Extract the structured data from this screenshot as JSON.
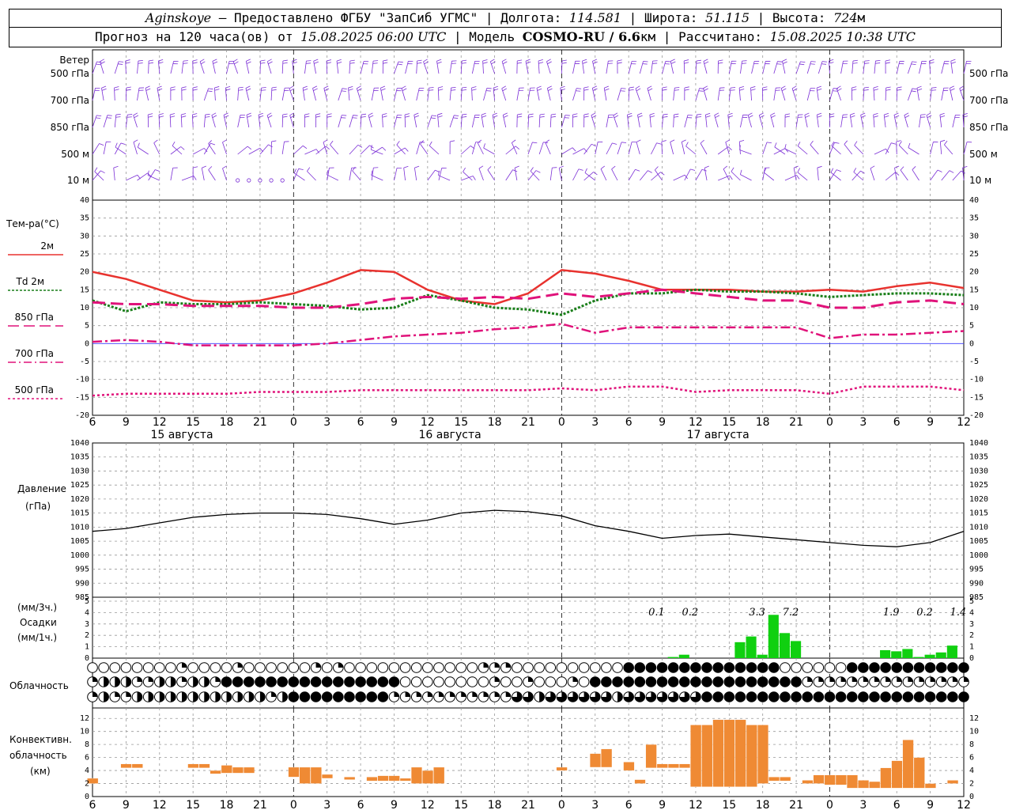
{
  "header": {
    "station": "Aginskoye",
    "dash": " – ",
    "provider": "Предоставлено ФГБУ \"ЗапСиб УГМС\"",
    "lon_label": "Долгота:",
    "lon": "114.581",
    "lat_label": "Широта:",
    "lat": "51.115",
    "alt_label": "Высота:",
    "alt": "724",
    "alt_unit": "м",
    "forecast_label": "Прогноз на 120 часа(ов) от",
    "forecast_start": "15.08.2025 06:00 UTC",
    "model_label": "Модель",
    "model": "COSMO-RU / 6.6",
    "model_unit": "км",
    "calc_label": "Рассчитано:",
    "calc_time": "15.08.2025 10:38 UTC",
    "sep": " | "
  },
  "hour_ticks": [
    "6",
    "9",
    "12",
    "15",
    "18",
    "21",
    "0",
    "3",
    "6",
    "9",
    "12",
    "15",
    "18",
    "21",
    "0",
    "3",
    "6",
    "9",
    "12",
    "15",
    "18",
    "21",
    "0",
    "3",
    "6",
    "9",
    "12"
  ],
  "dates": [
    {
      "label": "15 августа",
      "hour": 8
    },
    {
      "label": "16 августа",
      "hour": 32
    },
    {
      "label": "17 августа",
      "hour": 56
    }
  ],
  "wind": {
    "title": "Ветер",
    "levels": [
      "500 гПа",
      "700 гПа",
      "850 гПа",
      "500 м",
      "10 м"
    ],
    "colors": {
      "barb": "#7b2fd6"
    }
  },
  "temp_panel": {
    "title": "Тем-ра(°С)",
    "legend": [
      {
        "label": "2м",
        "color": "#e8322e",
        "dash": ""
      },
      {
        "label": "Td 2м",
        "color": "#1a7f1a",
        "dash": "2,2"
      },
      {
        "label": "850 гПа",
        "color": "#e0127a",
        "dash": "14,6"
      },
      {
        "label": "700 гПа",
        "color": "#e0127a",
        "dash": "10,4,2,4"
      },
      {
        "label": "500 гПа",
        "color": "#e0127a",
        "dash": "3,3"
      }
    ]
  },
  "pressure_panel": {
    "title1": "Давление",
    "title2": "(гПа)"
  },
  "precip_panel": {
    "title1": "(мм/3ч.)",
    "title2": "Осадки",
    "title3": "(мм/1ч.)",
    "bar_color": "#10d010"
  },
  "cloud_panel": {
    "title": "Облачность"
  },
  "conv_panel": {
    "title1": "Конвективн.",
    "title2": "облачность",
    "title3": "(км)",
    "bar_color": "#ef8a34"
  },
  "chart_data": [
    {
      "type": "line",
      "title": "Тем-ра(°С)",
      "ylim": [
        -20,
        40
      ],
      "x_hours_from_start": [
        0,
        3,
        6,
        9,
        12,
        15,
        18,
        21,
        24,
        27,
        30,
        33,
        36,
        39,
        42,
        45,
        48,
        51,
        54,
        57,
        60,
        63,
        66,
        69,
        72,
        75,
        78
      ],
      "series": [
        {
          "name": "2м",
          "values": [
            20,
            18,
            15,
            12,
            11.5,
            12,
            14,
            17,
            20.5,
            20,
            15,
            12,
            11,
            14,
            20.5,
            19.5,
            17.5,
            15,
            15,
            15,
            14.5,
            14.5,
            15,
            14.5,
            16,
            17,
            15.5
          ]
        },
        {
          "name": "Td 2м",
          "values": [
            12,
            9,
            11.5,
            11,
            11,
            11.5,
            11,
            10.5,
            9.5,
            10,
            13.5,
            12,
            10,
            9.5,
            8,
            12,
            14,
            14,
            15,
            14.5,
            14.5,
            14,
            13,
            13.5,
            14,
            14,
            13.5
          ]
        },
        {
          "name": "850 гПа",
          "values": [
            11.5,
            11,
            11,
            10.5,
            10.5,
            10.5,
            10,
            10,
            11,
            12.5,
            13,
            12.5,
            13,
            12.5,
            14,
            13,
            14,
            15,
            14,
            13,
            12,
            12,
            10,
            10,
            11.5,
            12,
            11
          ]
        },
        {
          "name": "700 гПа",
          "values": [
            0.5,
            1,
            0.5,
            -0.5,
            -0.5,
            -0.5,
            -0.5,
            0,
            1,
            2,
            2.5,
            3,
            4,
            4.5,
            5.5,
            3,
            4.5,
            4.5,
            4.5,
            4.5,
            4.5,
            4.5,
            1.5,
            2.5,
            2.5,
            3,
            3.5
          ]
        },
        {
          "name": "500 гПа",
          "values": [
            -14.5,
            -14,
            -14,
            -14,
            -14,
            -13.5,
            -13.5,
            -13.5,
            -13,
            -13,
            -13,
            -13,
            -13,
            -13,
            -12.5,
            -13,
            -12,
            -12,
            -13.5,
            -13,
            -13,
            -13,
            -14,
            -12,
            -12,
            -12,
            -13
          ]
        }
      ]
    },
    {
      "type": "line",
      "title": "Давление (гПа)",
      "ylim": [
        985,
        1040
      ],
      "x_hours_from_start": [
        0,
        3,
        6,
        9,
        12,
        15,
        18,
        21,
        24,
        27,
        30,
        33,
        36,
        39,
        42,
        45,
        48,
        51,
        54,
        57,
        60,
        63,
        66,
        69,
        72,
        75,
        78
      ],
      "series": [
        {
          "name": "Давление",
          "values": [
            1008.5,
            1009.5,
            1011.5,
            1013.5,
            1014.5,
            1015,
            1015,
            1014.5,
            1013,
            1011,
            1012.5,
            1015,
            1016,
            1015.5,
            1014,
            1010.5,
            1008.5,
            1006,
            1007,
            1007.5,
            1006.5,
            1005.5,
            1004.5,
            1003.5,
            1003,
            1004.5,
            1008.5
          ]
        }
      ]
    },
    {
      "type": "bar",
      "title": "Осадки",
      "ylim": [
        0,
        5
      ],
      "totals_3h": [
        {
          "hour": 50.5,
          "label": "0.1"
        },
        {
          "hour": 53.5,
          "label": "0.2"
        },
        {
          "hour": 59.5,
          "label": "3.3"
        },
        {
          "hour": 62.5,
          "label": "7.2"
        },
        {
          "hour": 71.5,
          "label": "1.9"
        },
        {
          "hour": 74.5,
          "label": "0.2"
        },
        {
          "hour": 77.5,
          "label": "1.4"
        }
      ],
      "hourly": [
        {
          "hour": 52,
          "mm": 0.1
        },
        {
          "hour": 53,
          "mm": 0.3
        },
        {
          "hour": 58,
          "mm": 1.4
        },
        {
          "hour": 59,
          "mm": 1.9
        },
        {
          "hour": 60,
          "mm": 0.3
        },
        {
          "hour": 61,
          "mm": 3.8
        },
        {
          "hour": 62,
          "mm": 2.2
        },
        {
          "hour": 63,
          "mm": 1.5
        },
        {
          "hour": 71,
          "mm": 0.7
        },
        {
          "hour": 72,
          "mm": 0.6
        },
        {
          "hour": 73,
          "mm": 0.8
        },
        {
          "hour": 74,
          "mm": 0.1
        },
        {
          "hour": 75,
          "mm": 0.3
        },
        {
          "hour": 76,
          "mm": 0.5
        },
        {
          "hour": 77,
          "mm": 1.1
        }
      ]
    },
    {
      "type": "bar",
      "title": "Конвективн. облачность (км)",
      "ylim": [
        0,
        13
      ],
      "segments": [
        {
          "hour": 0,
          "base": 2,
          "top": 2.8
        },
        {
          "hour": 3,
          "base": 4.4,
          "top": 5
        },
        {
          "hour": 4,
          "base": 4.4,
          "top": 5
        },
        {
          "hour": 9,
          "base": 4.4,
          "top": 5
        },
        {
          "hour": 10,
          "base": 4.4,
          "top": 5
        },
        {
          "hour": 11,
          "base": 3.5,
          "top": 4
        },
        {
          "hour": 12,
          "base": 3.6,
          "top": 4.8
        },
        {
          "hour": 13,
          "base": 3.6,
          "top": 4.5
        },
        {
          "hour": 14,
          "base": 3.6,
          "top": 4.5
        },
        {
          "hour": 18,
          "base": 3,
          "top": 4.5
        },
        {
          "hour": 19,
          "base": 2,
          "top": 4.5
        },
        {
          "hour": 20,
          "base": 2,
          "top": 4.5
        },
        {
          "hour": 21,
          "base": 2.8,
          "top": 3.4
        },
        {
          "hour": 23,
          "base": 2.6,
          "top": 3
        },
        {
          "hour": 25,
          "base": 2.4,
          "top": 3
        },
        {
          "hour": 26,
          "base": 2.4,
          "top": 3.2
        },
        {
          "hour": 27,
          "base": 2.4,
          "top": 3.2
        },
        {
          "hour": 28,
          "base": 2.4,
          "top": 2.8
        },
        {
          "hour": 29,
          "base": 2,
          "top": 4.5
        },
        {
          "hour": 30,
          "base": 2,
          "top": 4
        },
        {
          "hour": 31,
          "base": 2,
          "top": 4.5
        },
        {
          "hour": 42,
          "base": 4,
          "top": 4.5
        },
        {
          "hour": 45,
          "base": 4.5,
          "top": 6.6
        },
        {
          "hour": 46,
          "base": 4.5,
          "top": 7.3
        },
        {
          "hour": 48,
          "base": 4,
          "top": 5.3
        },
        {
          "hour": 49,
          "base": 2,
          "top": 2.6
        },
        {
          "hour": 50,
          "base": 4.4,
          "top": 8
        },
        {
          "hour": 51,
          "base": 4.4,
          "top": 5
        },
        {
          "hour": 52,
          "base": 4.4,
          "top": 5
        },
        {
          "hour": 53,
          "base": 4.4,
          "top": 5
        },
        {
          "hour": 54,
          "base": 1.5,
          "top": 11
        },
        {
          "hour": 55,
          "base": 1.5,
          "top": 11
        },
        {
          "hour": 56,
          "base": 1.5,
          "top": 11.8
        },
        {
          "hour": 57,
          "base": 1.5,
          "top": 11.8
        },
        {
          "hour": 58,
          "base": 1.5,
          "top": 11.8
        },
        {
          "hour": 59,
          "base": 1.5,
          "top": 11
        },
        {
          "hour": 60,
          "base": 2,
          "top": 11
        },
        {
          "hour": 61,
          "base": 2.4,
          "top": 3
        },
        {
          "hour": 62,
          "base": 2.4,
          "top": 3
        },
        {
          "hour": 64,
          "base": 2,
          "top": 2.5
        },
        {
          "hour": 65,
          "base": 2,
          "top": 3.3
        },
        {
          "hour": 66,
          "base": 1.8,
          "top": 3.3
        },
        {
          "hour": 67,
          "base": 1.8,
          "top": 3.3
        },
        {
          "hour": 68,
          "base": 1.3,
          "top": 3.3
        },
        {
          "hour": 69,
          "base": 1.3,
          "top": 2.5
        },
        {
          "hour": 70,
          "base": 1.3,
          "top": 2.3
        },
        {
          "hour": 71,
          "base": 1.3,
          "top": 4.4
        },
        {
          "hour": 72,
          "base": 1.3,
          "top": 5.5
        },
        {
          "hour": 73,
          "base": 1.3,
          "top": 8.7
        },
        {
          "hour": 74,
          "base": 1.3,
          "top": 6
        },
        {
          "hour": 75,
          "base": 1.3,
          "top": 2
        },
        {
          "hour": 77,
          "base": 2,
          "top": 2.5
        }
      ]
    }
  ]
}
